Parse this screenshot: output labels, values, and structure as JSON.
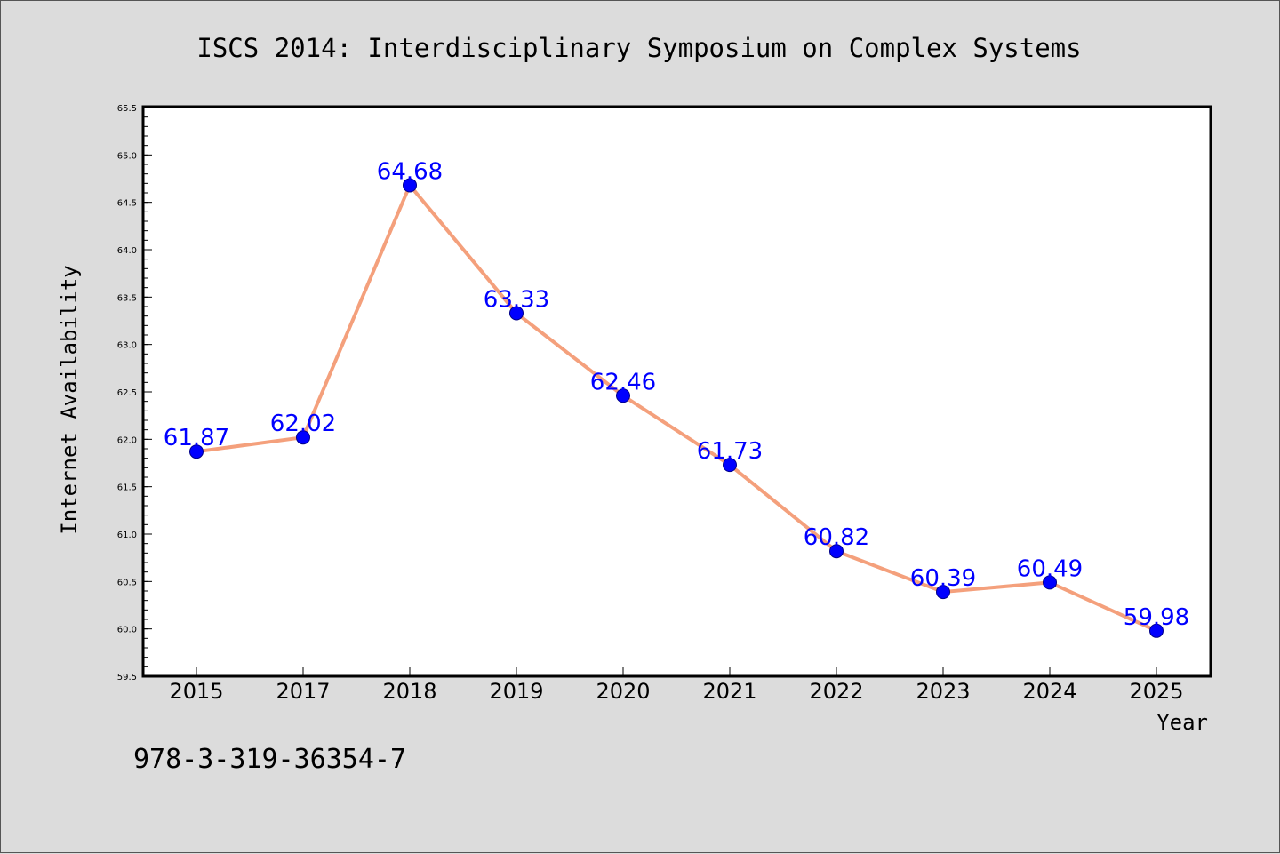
{
  "footer_text": "978-3-319-36354-7",
  "colors": {
    "background": "#dcdcdc",
    "plot_background": "#ffffff",
    "line": "#f4a07c",
    "marker": "#0000ff",
    "data_label": "#0000ff"
  },
  "chart_data": {
    "type": "line",
    "title": "ISCS 2014: Interdisciplinary Symposium on Complex Systems",
    "xlabel": "Year",
    "ylabel": "Internet Availability",
    "categories": [
      "2015",
      "2017",
      "2018",
      "2019",
      "2020",
      "2021",
      "2022",
      "2023",
      "2024",
      "2025"
    ],
    "series": [
      {
        "values": [
          61.87,
          62.02,
          64.68,
          63.33,
          62.46,
          61.73,
          60.82,
          60.39,
          60.49,
          59.98
        ],
        "data_labels": [
          "61.87",
          "62.02",
          "64.68",
          "63.33",
          "62.46",
          "61.73",
          "60.82",
          "60.39",
          "60.49",
          "59.98"
        ]
      }
    ],
    "ylim": [
      59.5,
      65.5
    ],
    "yticks": [
      "59.5",
      "60.0",
      "60.5",
      "61.0",
      "61.5",
      "62.0",
      "62.5",
      "63.0",
      "63.5",
      "64.0",
      "64.5",
      "65.0",
      "65.5"
    ],
    "grid": false,
    "legend": "none"
  }
}
